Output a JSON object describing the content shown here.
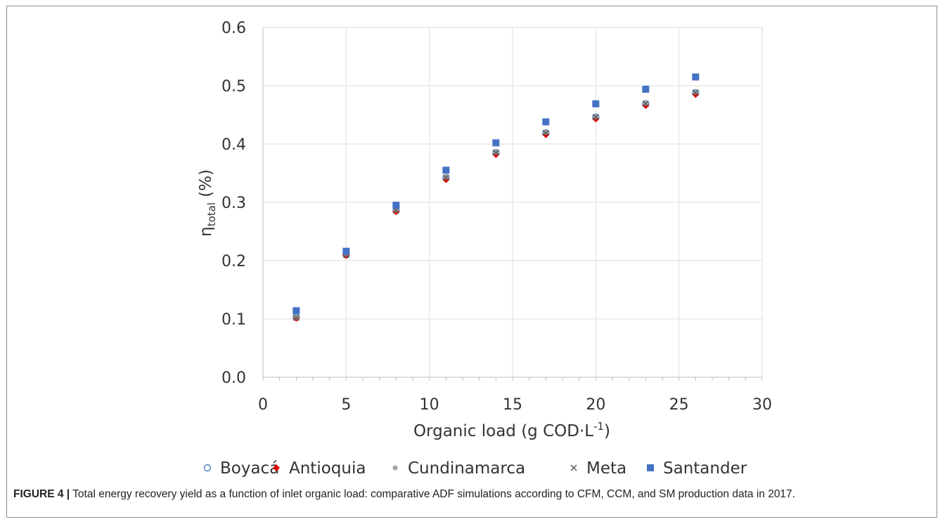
{
  "chart_data": {
    "type": "scatter",
    "xlabel": "Organic load (g COD·L⁻¹)",
    "xlabel_parts": {
      "main": "Organic load (g COD·L",
      "sup": "-1",
      "end": ")"
    },
    "ylabel_parts": {
      "main": "η",
      "sub": "total",
      "end": " (%)"
    },
    "xlim": [
      0,
      30
    ],
    "ylim": [
      0.0,
      0.6
    ],
    "x_ticks": [
      0,
      5,
      10,
      15,
      20,
      25,
      30
    ],
    "y_ticks": [
      0.0,
      0.1,
      0.2,
      0.3,
      0.4,
      0.5,
      0.6
    ],
    "x_tick_labels": [
      "0",
      "5",
      "10",
      "15",
      "20",
      "25",
      "30"
    ],
    "y_tick_labels": [
      "0.0",
      "0.1",
      "0.2",
      "0.3",
      "0.4",
      "0.5",
      "0.6"
    ],
    "grid": true,
    "legend_position": "bottom",
    "x": [
      2,
      5,
      8,
      11,
      14,
      17,
      20,
      23,
      26
    ],
    "series": [
      {
        "name": "Boyacá",
        "marker": "circle-open",
        "color": "#4f81bd",
        "values": [
          0.103,
          0.21,
          0.286,
          0.342,
          0.385,
          0.419,
          0.446,
          0.469,
          0.488
        ]
      },
      {
        "name": "Antioquia",
        "marker": "diamond",
        "color": "#e00000",
        "values": [
          0.101,
          0.209,
          0.284,
          0.339,
          0.382,
          0.416,
          0.443,
          0.466,
          0.485
        ]
      },
      {
        "name": "Cundinamarca",
        "marker": "dot",
        "color": "#a6a6a6",
        "values": [
          0.103,
          0.211,
          0.287,
          0.343,
          0.386,
          0.42,
          0.447,
          0.47,
          0.489
        ]
      },
      {
        "name": "Meta",
        "marker": "x",
        "color": "#595959",
        "values": [
          0.102,
          0.21,
          0.286,
          0.342,
          0.385,
          0.419,
          0.446,
          0.469,
          0.488
        ]
      },
      {
        "name": "Santander",
        "marker": "square",
        "color": "#4472c4",
        "values": [
          0.114,
          0.216,
          0.295,
          0.355,
          0.402,
          0.438,
          0.469,
          0.494,
          0.515
        ]
      }
    ]
  },
  "caption": {
    "label": "FIGURE 4 |",
    "text": " Total energy recovery yield as a function of inlet organic load: comparative ADF simulations according to CFM, CCM, and SM production data in 2017."
  }
}
